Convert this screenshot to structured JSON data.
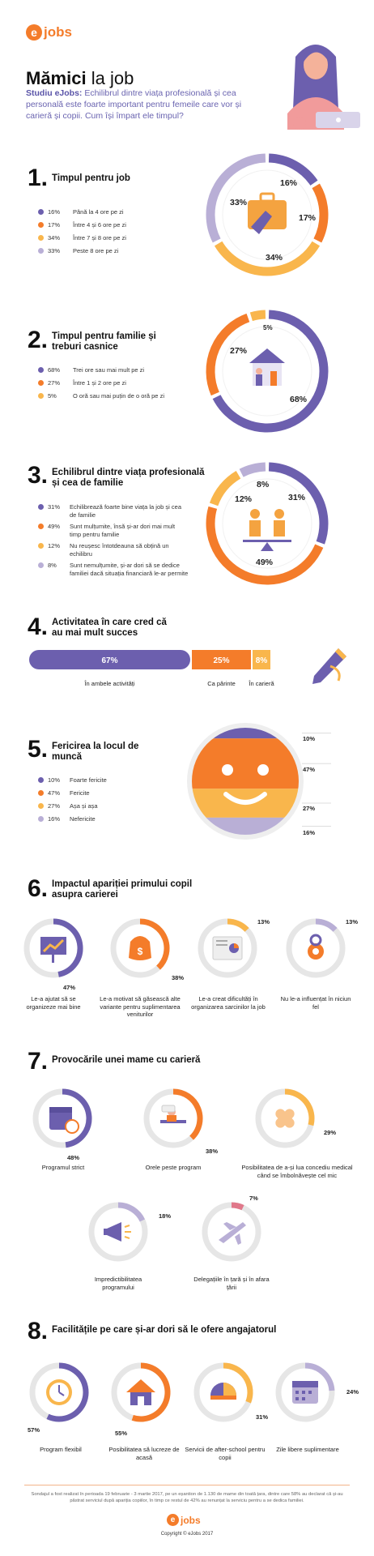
{
  "header": {
    "logo_letter": "e",
    "logo_text": "jobs",
    "title_bold": "Mămici",
    "title_rest": " la job",
    "intro_bold": "Studiu eJobs:",
    "intro_text": " Echilibrul dintre viața profesională și cea personală este foarte important pentru femeile care vor și carieră și copii. Cum își împart ele timpul?"
  },
  "colors": {
    "purple": "#6c5fae",
    "orange": "#f47c2a",
    "yellow": "#f9b64c",
    "lavender": "#b9afd6",
    "grey": "#e6e6e6",
    "accent": "#f47c2a"
  },
  "sections": {
    "s1": {
      "num": "1.",
      "title": "Timpul pentru job"
    },
    "s2": {
      "num": "2.",
      "title": "Timpul pentru familie și treburi casnice"
    },
    "s3": {
      "num": "3.",
      "title": "Echilibrul dintre viața profesională și cea de familie"
    },
    "s4": {
      "num": "4.",
      "title": "Activitatea în care cred că au mai mult succes"
    },
    "s5": {
      "num": "5.",
      "title": "Fericirea la locul de muncă"
    },
    "s6": {
      "num": "6.",
      "title": "Impactul apariției primului copil asupra carierei"
    },
    "s7": {
      "num": "7.",
      "title": "Provocările unei mame cu carieră"
    },
    "s8": {
      "num": "8.",
      "title": "Facilitățile pe care și-ar dori să le ofere angajatorul"
    }
  },
  "chart_data": [
    {
      "id": "s1",
      "type": "pie",
      "categories": [
        "Până la 4 ore pe zi",
        "Între 4 și 6 ore pe zi",
        "Între 7 și 8 ore pe zi",
        "Peste 8 ore pe zi"
      ],
      "values": [
        16,
        17,
        34,
        33
      ],
      "labels": [
        "16%",
        "17%",
        "34%",
        "33%"
      ],
      "colors": [
        "#6c5fae",
        "#f47c2a",
        "#f9b64c",
        "#b9afd6"
      ]
    },
    {
      "id": "s2",
      "type": "pie",
      "categories": [
        "Trei ore sau mai mult pe zi",
        "Între 1 și 2 ore pe zi",
        "O oră sau mai puțin de o oră pe zi"
      ],
      "values": [
        68,
        27,
        5
      ],
      "labels": [
        "68%",
        "27%",
        "5%"
      ],
      "colors": [
        "#6c5fae",
        "#f47c2a",
        "#f9b64c"
      ]
    },
    {
      "id": "s3",
      "type": "pie",
      "categories": [
        "Echilibrează foarte bine viața la job și cea de familie",
        "Sunt mulțumite, însă și-ar dori mai mult timp pentru familie",
        "Nu reușesc întotdeauna să obțină un echilibru",
        "Sunt nemulțumite, și-ar dori să se dedice familiei dacă situația financiară le-ar permite"
      ],
      "values": [
        31,
        49,
        12,
        8
      ],
      "labels": [
        "31%",
        "49%",
        "12%",
        "8%"
      ],
      "colors": [
        "#6c5fae",
        "#f47c2a",
        "#f9b64c",
        "#b9afd6"
      ]
    },
    {
      "id": "s4",
      "type": "bar",
      "categories": [
        "În ambele activități",
        "Ca părinte",
        "În carieră"
      ],
      "values": [
        67,
        25,
        8
      ],
      "labels": [
        "67%",
        "25%",
        "8%"
      ],
      "colors": [
        "#6c5fae",
        "#f47c2a",
        "#f9b64c"
      ]
    },
    {
      "id": "s5",
      "type": "bar",
      "categories": [
        "Foarte fericite",
        "Fericite",
        "Așa și așa",
        "Nefericite"
      ],
      "values": [
        10,
        47,
        27,
        16
      ],
      "labels": [
        "10%",
        "47%",
        "27%",
        "16%"
      ],
      "colors": [
        "#6c5fae",
        "#f47c2a",
        "#f9b64c",
        "#b9afd6"
      ]
    },
    {
      "id": "s6",
      "type": "pie",
      "categories": [
        "Le-a ajutat să se organizeze mai bine",
        "Le-a motivat să găsească alte variante pentru suplimentarea veniturilor",
        "Le-a creat dificultăți în organizarea sarcinilor la job",
        "Nu le-a influențat în niciun fel"
      ],
      "values": [
        47,
        38,
        13,
        13
      ],
      "labels": [
        "47%",
        "38%",
        "13%",
        "13%"
      ],
      "colors": [
        "#6c5fae",
        "#f47c2a",
        "#f9b64c",
        "#b9afd6"
      ]
    },
    {
      "id": "s7",
      "type": "pie",
      "categories": [
        "Programul strict",
        "Orele peste program",
        "Posibilitatea de a-și lua concediu medical când se îmbolnăvește cel mic",
        "Impredictibilitatea programului",
        "Delegațiile în țară și în afara țării"
      ],
      "values": [
        48,
        38,
        29,
        18,
        7
      ],
      "labels": [
        "48%",
        "38%",
        "29%",
        "18%",
        "7%"
      ],
      "colors": [
        "#6c5fae",
        "#f47c2a",
        "#f9b64c",
        "#b9afd6",
        "#e0788a"
      ]
    },
    {
      "id": "s8",
      "type": "pie",
      "categories": [
        "Program flexibil",
        "Posibilitatea să lucreze de acasă",
        "Servicii de after-school pentru copii",
        "Zile libere suplimentare"
      ],
      "values": [
        57,
        55,
        31,
        24
      ],
      "labels": [
        "57%",
        "55%",
        "31%",
        "24%"
      ],
      "colors": [
        "#6c5fae",
        "#f47c2a",
        "#f9b64c",
        "#b9afd6"
      ]
    }
  ],
  "footer": {
    "note": "Sondajul a fost realizat în perioada 19 februarie - 3 martie 2017, pe un eșantion de 1.130 de mame din toată țara, dintre care 58% au declarat că și-au păstrat serviciul după apariția copiilor, în timp ce restul de 42% au renunțat la serviciu pentru a se dedica familiei.",
    "logo_letter": "e",
    "logo_text": "jobs",
    "copyright": "Copyright © eJobs 2017"
  }
}
